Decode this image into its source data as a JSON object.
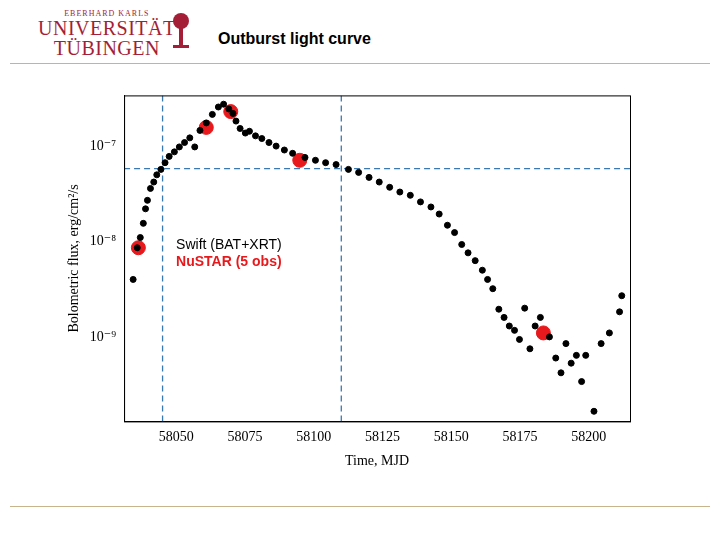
{
  "header": {
    "logo_lines": [
      "EBERHARD KARLS",
      "UNIVERSITÄT",
      "TÜBINGEN"
    ]
  },
  "chart_data": {
    "type": "scatter",
    "title": "Outburst light curve",
    "x_label": "Time, MJD",
    "y_label": "Bolometric flux, erg/cm²/s",
    "log": "y",
    "grid": false,
    "legend": "left",
    "xlim": [
      58031,
      58215
    ],
    "xticks": [
      58050,
      58075,
      58100,
      58125,
      58150,
      58175,
      58200
    ],
    "ylim": [
      1.3e-10,
      3.4e-07
    ],
    "yticks": [
      {
        "value": 1e-09,
        "label": "10⁻⁹"
      },
      {
        "value": 1e-08,
        "label": "10⁻⁸"
      },
      {
        "value": 1e-07,
        "label": "10⁻⁷"
      }
    ],
    "vlines": [
      58045,
      58110
    ],
    "hlines": [
      5.8e-08
    ],
    "series": [
      {
        "name": "Swift (BAT+XRT)",
        "color": "#000000",
        "marker": "circle",
        "x": [
          58034.3,
          58035.8,
          58036.9,
          58038.0,
          58038.8,
          58039.5,
          58040.6,
          58041.8,
          58042.9,
          58044.4,
          58045.9,
          58047.4,
          58049.3,
          58051.1,
          58053.0,
          58054.9,
          58056.7,
          58058.6,
          58060.9,
          58063.1,
          58065.3,
          58067.2,
          58069.1,
          58070.6,
          58071.7,
          58073.2,
          58075.1,
          58076.6,
          58078.8,
          58081.1,
          58083.7,
          58086.3,
          58089.3,
          58092.3,
          58096.8,
          58100.6,
          58104.3,
          58108.1,
          58112.6,
          58116.3,
          58120.1,
          58123.8,
          58127.6,
          58131.3,
          58135.1,
          58138.8,
          58142.6,
          58145.6,
          58148.6,
          58151.2,
          58153.8,
          58156.1,
          58158.7,
          58161.3,
          58163.2,
          58165.1,
          58167.3,
          58169.2,
          58171.1,
          58173.0,
          58174.8,
          58176.7,
          58178.6,
          58180.5,
          58182.4,
          58185.7,
          58188.0,
          58189.9,
          58191.7,
          58193.6,
          58195.5,
          58197.4,
          58198.9,
          58201.9,
          58204.5,
          58207.5,
          58211.2,
          58212.0
        ],
        "values": [
          4e-09,
          8.6e-09,
          1.1e-08,
          1.55e-08,
          2.2e-08,
          2.7e-08,
          3.6e-08,
          4.2e-08,
          5e-08,
          5.7e-08,
          6.7e-08,
          7.8e-08,
          8.7e-08,
          9.8e-08,
          1.09e-07,
          1.22e-07,
          9.8e-08,
          1.46e-07,
          1.75e-07,
          2.15e-07,
          2.57e-07,
          2.75e-07,
          2.45e-07,
          2.2e-07,
          1.83e-07,
          1.53e-07,
          1.37e-07,
          1.43e-07,
          1.28e-07,
          1.2e-07,
          1.09e-07,
          1e-07,
          9.1e-08,
          8.4e-08,
          7.6e-08,
          7.1e-08,
          6.7e-08,
          6.4e-08,
          5.7e-08,
          5.3e-08,
          4.7e-08,
          4.2e-08,
          3.7e-08,
          3.3e-08,
          3.05e-08,
          2.6e-08,
          2.3e-08,
          1.94e-08,
          1.48e-08,
          1.24e-08,
          9.3e-09,
          7.6e-09,
          6.3e-09,
          5e-09,
          4e-09,
          3.2e-09,
          1.95e-09,
          1.6e-09,
          1.3e-09,
          1.17e-09,
          9.4e-10,
          2e-09,
          7.5e-10,
          1.3e-09,
          1.6e-09,
          1e-09,
          6e-10,
          4.2e-10,
          8.5e-10,
          5.3e-10,
          6.4e-10,
          3.4e-10,
          6.4e-10,
          1.66e-10,
          8.5e-10,
          1.1e-09,
          1.83e-09,
          2.7e-09
        ]
      },
      {
        "name": "NuSTAR (5 obs)",
        "color": "#e8191c",
        "marker": "circle",
        "x": [
          58036.2,
          58060.9,
          58069.8,
          58094.9,
          58183.5
        ],
        "values": [
          8.6e-09,
          1.57e-07,
          2.3e-07,
          7.1e-08,
          1.1e-09
        ]
      }
    ]
  }
}
